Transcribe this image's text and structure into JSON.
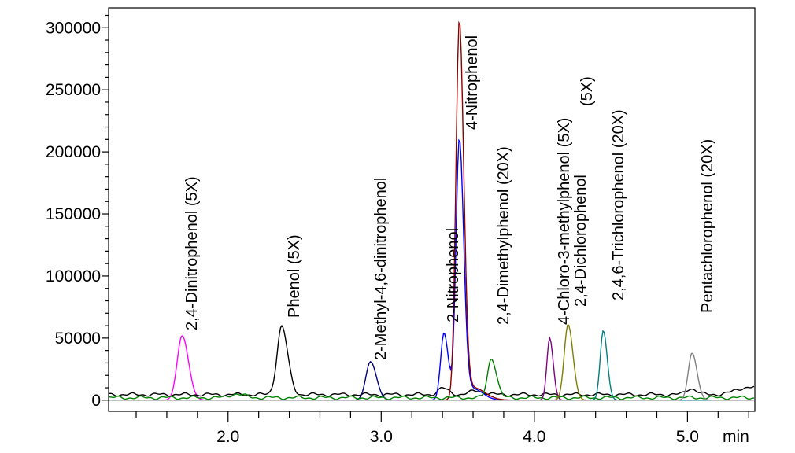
{
  "chart_data": {
    "type": "line",
    "title": "",
    "xlabel": "min",
    "ylabel": "",
    "xlim": [
      1.22,
      5.44
    ],
    "ylim": [
      -9000,
      316000
    ],
    "grid": false,
    "legend": "none",
    "x_ticks": [
      "2.0",
      "3.0",
      "4.0",
      "5.0"
    ],
    "x_tick_values": [
      2.0,
      3.0,
      4.0,
      5.0
    ],
    "y_ticks": [
      "0",
      "50000",
      "100000",
      "150000",
      "200000",
      "250000",
      "300000"
    ],
    "y_tick_values": [
      0,
      50000,
      100000,
      150000,
      200000,
      250000,
      300000
    ],
    "series": [
      {
        "color": "#ff00ff",
        "baseline": 0,
        "peaks": [
          {
            "rt": 1.7,
            "height": 52000,
            "sigma": 0.032
          }
        ]
      },
      {
        "color": "#000000",
        "baseline": 4500,
        "peaks": [
          {
            "rt": 2.35,
            "height": 55000,
            "sigma": 0.03
          },
          {
            "rt": 3.4,
            "height": 5000,
            "sigma": 0.03
          },
          {
            "rt": 3.62,
            "height": 3000,
            "sigma": 0.04
          },
          {
            "rt": 5.02,
            "height": 5000,
            "sigma": 0.03
          },
          {
            "rt": 5.4,
            "height": 6000,
            "sigma": 0.08
          }
        ]
      },
      {
        "color": "#000080",
        "baseline": 0,
        "peaks": [
          {
            "rt": 2.93,
            "height": 31000,
            "sigma": 0.03
          }
        ]
      },
      {
        "color": "#0000ff",
        "baseline": 0,
        "peaks": [
          {
            "rt": 3.41,
            "height": 54000,
            "sigma": 0.022
          },
          {
            "rt": 3.51,
            "height": 209000,
            "sigma": 0.022
          },
          {
            "rt": 3.6,
            "height": 9000,
            "sigma": 0.05
          }
        ]
      },
      {
        "color": "#8b0000",
        "baseline": 0,
        "peaks": [
          {
            "rt": 3.51,
            "height": 303000,
            "sigma": 0.022
          },
          {
            "rt": 3.6,
            "height": 10000,
            "sigma": 0.06
          }
        ]
      },
      {
        "color": "#008000",
        "baseline": 2000,
        "peaks": [
          {
            "rt": 3.72,
            "height": 32000,
            "sigma": 0.025
          },
          {
            "rt": 2.05,
            "height": 3000,
            "sigma": 0.04
          }
        ]
      },
      {
        "color": "#800080",
        "baseline": 0,
        "peaks": [
          {
            "rt": 4.1,
            "height": 50000,
            "sigma": 0.018
          }
        ]
      },
      {
        "color": "#808000",
        "baseline": 0,
        "peaks": [
          {
            "rt": 4.22,
            "height": 61000,
            "sigma": 0.025
          }
        ]
      },
      {
        "color": "#008080",
        "baseline": 0,
        "peaks": [
          {
            "rt": 4.45,
            "height": 56000,
            "sigma": 0.02
          }
        ]
      },
      {
        "color": "#808080",
        "baseline": 0,
        "peaks": [
          {
            "rt": 5.03,
            "height": 38000,
            "sigma": 0.025
          }
        ]
      }
    ],
    "annotations": [
      {
        "text": "2,4-Dinitrophenol (5X)",
        "rt": 1.7
      },
      {
        "text": "Phenol (5X)",
        "rt": 2.35
      },
      {
        "text": "2-Methyl-4,6-dinitrophenol",
        "rt": 2.93
      },
      {
        "text": "2-Nitrophenol",
        "rt": 3.41
      },
      {
        "text": "4-Nitrophenol",
        "rt": 3.51
      },
      {
        "text": "2,4-Dimethylphenol (20X)",
        "rt": 3.72
      },
      {
        "text": "4-Chloro-3-methylphenol (5X)",
        "rt": 4.1
      },
      {
        "text": "2,4-Dichlorophenol",
        "rt": 4.22
      },
      {
        "text": "(5X)",
        "rt": 4.22
      },
      {
        "text": "2,4,6-Trichlorophenol (20X)",
        "rt": 4.45
      },
      {
        "text": "Pentachlorophenol (20X)",
        "rt": 5.03
      }
    ]
  }
}
